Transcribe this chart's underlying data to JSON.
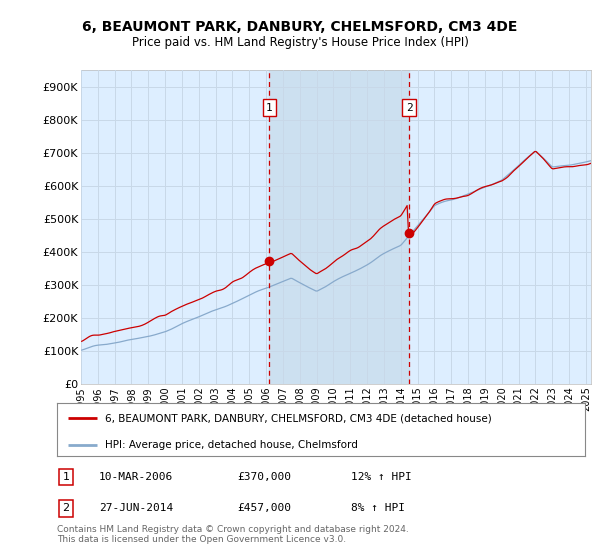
{
  "title": "6, BEAUMONT PARK, DANBURY, CHELMSFORD, CM3 4DE",
  "subtitle": "Price paid vs. HM Land Registry's House Price Index (HPI)",
  "ylabel_ticks": [
    "£0",
    "£100K",
    "£200K",
    "£300K",
    "£400K",
    "£500K",
    "£600K",
    "£700K",
    "£800K",
    "£900K"
  ],
  "ylabel_values": [
    0,
    100000,
    200000,
    300000,
    400000,
    500000,
    600000,
    700000,
    800000,
    900000
  ],
  "ylim": [
    0,
    950000
  ],
  "background_color": "#ffffff",
  "plot_bg_color": "#ddeeff",
  "grid_color": "#c8d8e8",
  "marker1_date": "10-MAR-2006",
  "marker1_price": 370000,
  "marker1_hpi_str": "12% ↑ HPI",
  "marker1_x": 2006.19,
  "marker2_date": "27-JUN-2014",
  "marker2_price": 457000,
  "marker2_x": 2014.49,
  "marker2_hpi_str": "8% ↑ HPI",
  "legend_line1": "6, BEAUMONT PARK, DANBURY, CHELMSFORD, CM3 4DE (detached house)",
  "legend_line2": "HPI: Average price, detached house, Chelmsford",
  "footnote": "Contains HM Land Registry data © Crown copyright and database right 2024.\nThis data is licensed under the Open Government Licence v3.0.",
  "red_color": "#cc0000",
  "blue_color": "#88aacc",
  "shade_color": "#cce0f0",
  "xtick_years": [
    1995,
    1996,
    1997,
    1998,
    1999,
    2000,
    2001,
    2002,
    2003,
    2004,
    2005,
    2006,
    2007,
    2008,
    2009,
    2010,
    2011,
    2012,
    2013,
    2014,
    2015,
    2016,
    2017,
    2018,
    2019,
    2020,
    2021,
    2022,
    2023,
    2024,
    2025
  ]
}
